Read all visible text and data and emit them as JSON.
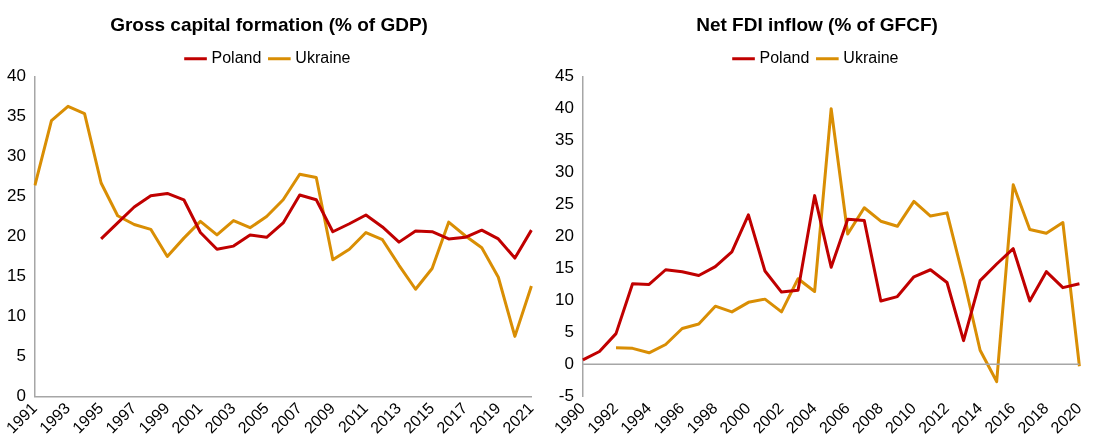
{
  "chart_data": [
    {
      "type": "line",
      "title": "Gross capital formation (% of GDP)",
      "categories": [
        "1991",
        null,
        "1993",
        null,
        "1995",
        null,
        "1997",
        null,
        "1999",
        null,
        "2001",
        null,
        "2003",
        null,
        "2005",
        null,
        "2007",
        null,
        "2009",
        null,
        "2011",
        null,
        "2013",
        null,
        "2015",
        null,
        "2017",
        null,
        "2019",
        null,
        "2021"
      ],
      "series": [
        {
          "name": "Poland",
          "color": "#c00000",
          "values": [
            null,
            null,
            null,
            null,
            19.7,
            21.7,
            23.7,
            25.1,
            25.4,
            24.6,
            20.5,
            18.4,
            18.8,
            20.2,
            19.9,
            21.7,
            25.2,
            24.6,
            20.6,
            21.6,
            22.7,
            21.2,
            19.3,
            20.7,
            20.6,
            19.7,
            19.9,
            20.8,
            19.7,
            17.3,
            20.8
          ]
        },
        {
          "name": "Ukraine",
          "color": "#d98e04",
          "values": [
            26.4,
            34.5,
            36.3,
            35.4,
            26.7,
            22.6,
            21.5,
            20.9,
            17.5,
            19.8,
            21.9,
            20.2,
            22.0,
            21.1,
            22.5,
            24.6,
            27.8,
            27.4,
            17.1,
            18.4,
            20.5,
            19.6,
            16.4,
            13.4,
            16.0,
            21.8,
            20.1,
            18.6,
            14.9,
            7.5,
            13.8
          ]
        }
      ],
      "ylim": [
        0,
        40
      ],
      "yticks": [
        0,
        5,
        10,
        15,
        20,
        25,
        30,
        35,
        40
      ],
      "grid": false,
      "legend": "top",
      "marker": "none",
      "line_style": "solid"
    },
    {
      "type": "line",
      "title": "Net FDI inflow (% of GFCF)",
      "categories": [
        "1990",
        null,
        "1992",
        null,
        "1994",
        null,
        "1996",
        null,
        "1998",
        null,
        "2000",
        null,
        "2002",
        null,
        "2004",
        null,
        "2006",
        null,
        "2008",
        null,
        "2010",
        null,
        "2012",
        null,
        "2014",
        null,
        "2016",
        null,
        "2018",
        null,
        "2020"
      ],
      "series": [
        {
          "name": "Poland",
          "color": "#c00000",
          "values": [
            0.7,
            2.0,
            4.8,
            12.6,
            12.5,
            14.8,
            14.5,
            13.9,
            15.3,
            17.6,
            23.4,
            14.6,
            11.3,
            11.6,
            26.4,
            15.2,
            22.7,
            22.5,
            9.9,
            10.6,
            13.7,
            14.8,
            12.8,
            3.7,
            13.1,
            15.7,
            18.1,
            9.9,
            14.5,
            12.0,
            12.6
          ]
        },
        {
          "name": "Ukraine",
          "color": "#d98e04",
          "values": [
            null,
            null,
            2.6,
            2.5,
            1.8,
            3.1,
            5.6,
            6.3,
            9.1,
            8.2,
            9.7,
            10.2,
            8.2,
            13.4,
            11.4,
            40.0,
            20.4,
            24.5,
            22.4,
            21.6,
            25.5,
            23.2,
            23.7,
            13.4,
            2.2,
            -2.7,
            28.1,
            21.1,
            20.5,
            22.2,
            -0.3
          ]
        }
      ],
      "ylim": [
        -5,
        45
      ],
      "yticks": [
        -5,
        0,
        5,
        10,
        15,
        20,
        25,
        30,
        35,
        40,
        45
      ],
      "grid": false,
      "legend": "top",
      "marker": "none",
      "line_style": "solid"
    }
  ]
}
